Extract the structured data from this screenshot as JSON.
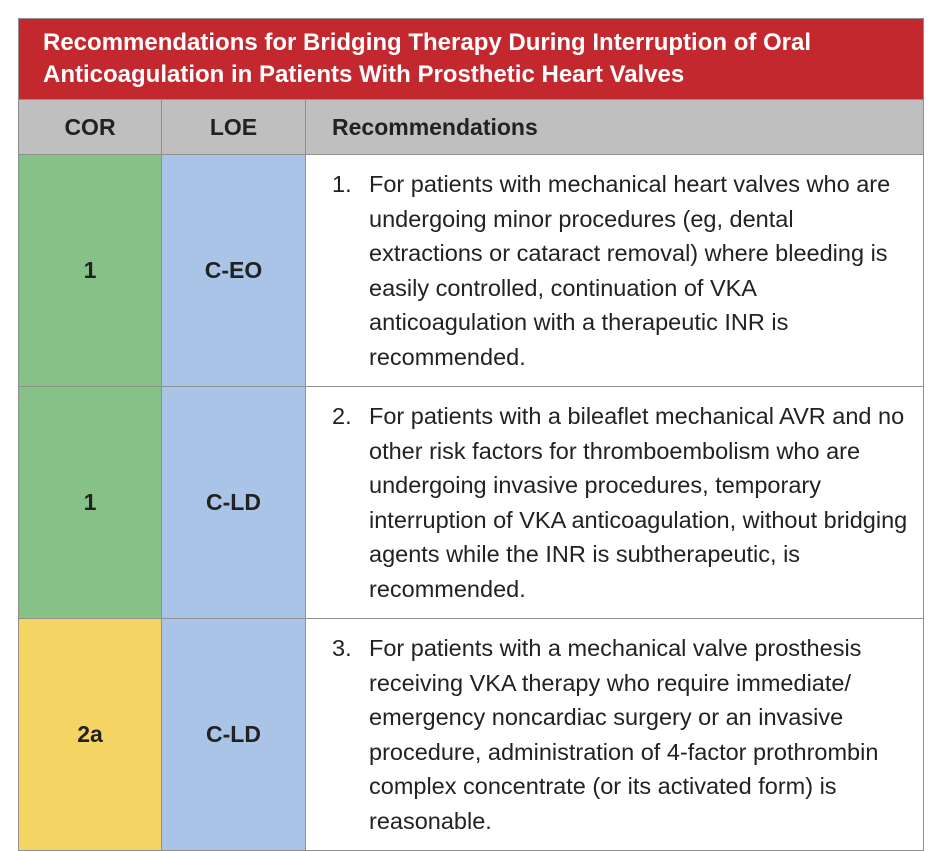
{
  "header": {
    "title": "Recommendations for Bridging Therapy During Interruption of Oral Anticoagulation in Patients With Prosthetic Heart Valves"
  },
  "table": {
    "columns": [
      "COR",
      "LOE",
      "Recommendations"
    ],
    "rows": [
      {
        "cor": "1",
        "loe": "C-EO",
        "number": "1.",
        "text": "For patients with mechanical heart valves who are undergoing minor procedures (eg, dental extractions or cataract removal) where bleeding is easily controlled, continuation of VKA anticoagulation with a therapeutic INR is recommended."
      },
      {
        "cor": "1",
        "loe": "C-LD",
        "number": "2.",
        "text": "For patients with a bileaflet mechanical AVR and no other risk factors for thromboembolism who are undergoing invasive procedures, temporary interruption of VKA anticoagulation, without bridging agents while the INR is subtherapeutic, is recommended."
      },
      {
        "cor": "2a",
        "loe": "C-LD",
        "number": "3.",
        "text": "For patients with a mechanical valve prosthesis receiving VKA therapy who require immediate/ emergency noncardiac surgery or an invasive procedure, administration of 4-factor prothrombin complex concentrate (or its activated form) is reasonable."
      }
    ]
  }
}
